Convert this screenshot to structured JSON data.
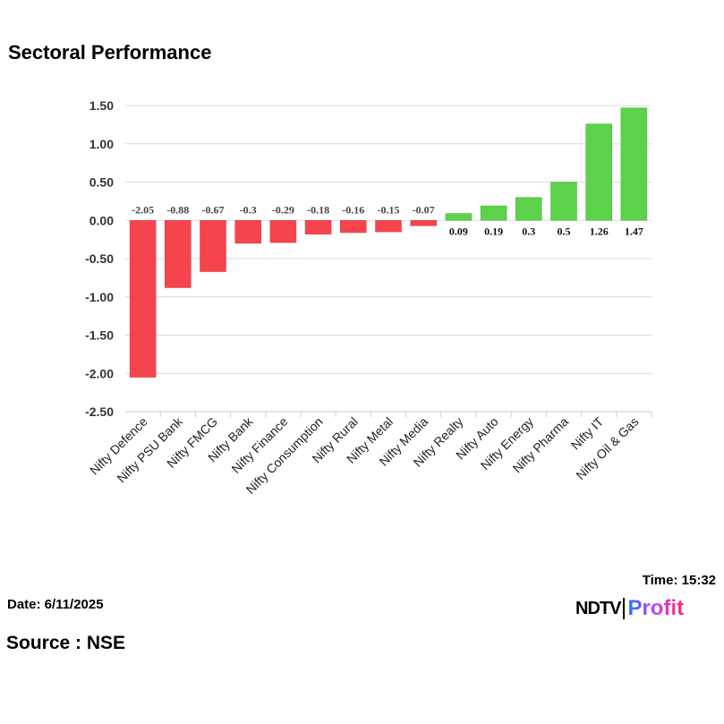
{
  "chart_data": {
    "type": "bar",
    "title": "Sectoral Performance",
    "categories": [
      "Nifty Defence",
      "Nifty PSU Bank",
      "Nifty FMCG",
      "Nifty Bank",
      "Nifty Finance",
      "Nifty Consumption",
      "Nifty Rural",
      "Nifty Metal",
      "Nifty Media",
      "Nifty Realty",
      "Nifty Auto",
      "Nifty Energy",
      "Nifty Pharma",
      "Nifty IT",
      "Nifty Oil & Gas"
    ],
    "values": [
      -2.05,
      -0.88,
      -0.67,
      -0.3,
      -0.29,
      -0.18,
      -0.16,
      -0.15,
      -0.07,
      0.09,
      0.19,
      0.3,
      0.5,
      1.26,
      1.47
    ],
    "ylim": [
      -2.5,
      1.5
    ],
    "yticks": [
      "1.50",
      "1.00",
      "0.50",
      "0.00",
      "-0.50",
      "-1.00",
      "-1.50",
      "-2.00",
      "-2.50"
    ],
    "grid": true,
    "colors": {
      "negative": "#f5444e",
      "positive": "#5cd14a"
    }
  },
  "footer": {
    "date": "Date: 6/11/2025",
    "time": "Time: 15:32",
    "source": "Source : NSE"
  },
  "logo": {
    "ndtv": "NDTV",
    "profit": "Profit"
  }
}
